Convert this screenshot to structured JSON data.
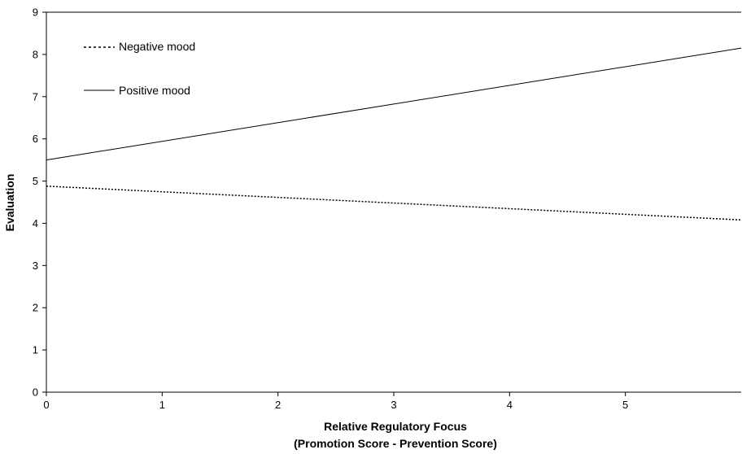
{
  "chart_data": {
    "type": "line",
    "title": "",
    "xlabel": "Relative Regulatory Focus",
    "xlabel_line2": "(Promotion Score - Prevention Score)",
    "ylabel": "Evaluation",
    "xlim": [
      0,
      6
    ],
    "ylim": [
      0,
      9
    ],
    "x_ticks": [
      "0",
      "1",
      "2",
      "3",
      "4",
      "5"
    ],
    "y_ticks": [
      "0",
      "1",
      "2",
      "3",
      "4",
      "5",
      "6",
      "7",
      "8",
      "9"
    ],
    "grid": false,
    "legend_position": "top-left",
    "series": [
      {
        "name": "Negative mood",
        "style": "dotted",
        "color": "#000000",
        "x": [
          0,
          6
        ],
        "y": [
          4.88,
          4.08
        ]
      },
      {
        "name": "Positive mood",
        "style": "solid",
        "color": "#000000",
        "x": [
          0,
          6
        ],
        "y": [
          5.5,
          8.15
        ]
      }
    ]
  }
}
